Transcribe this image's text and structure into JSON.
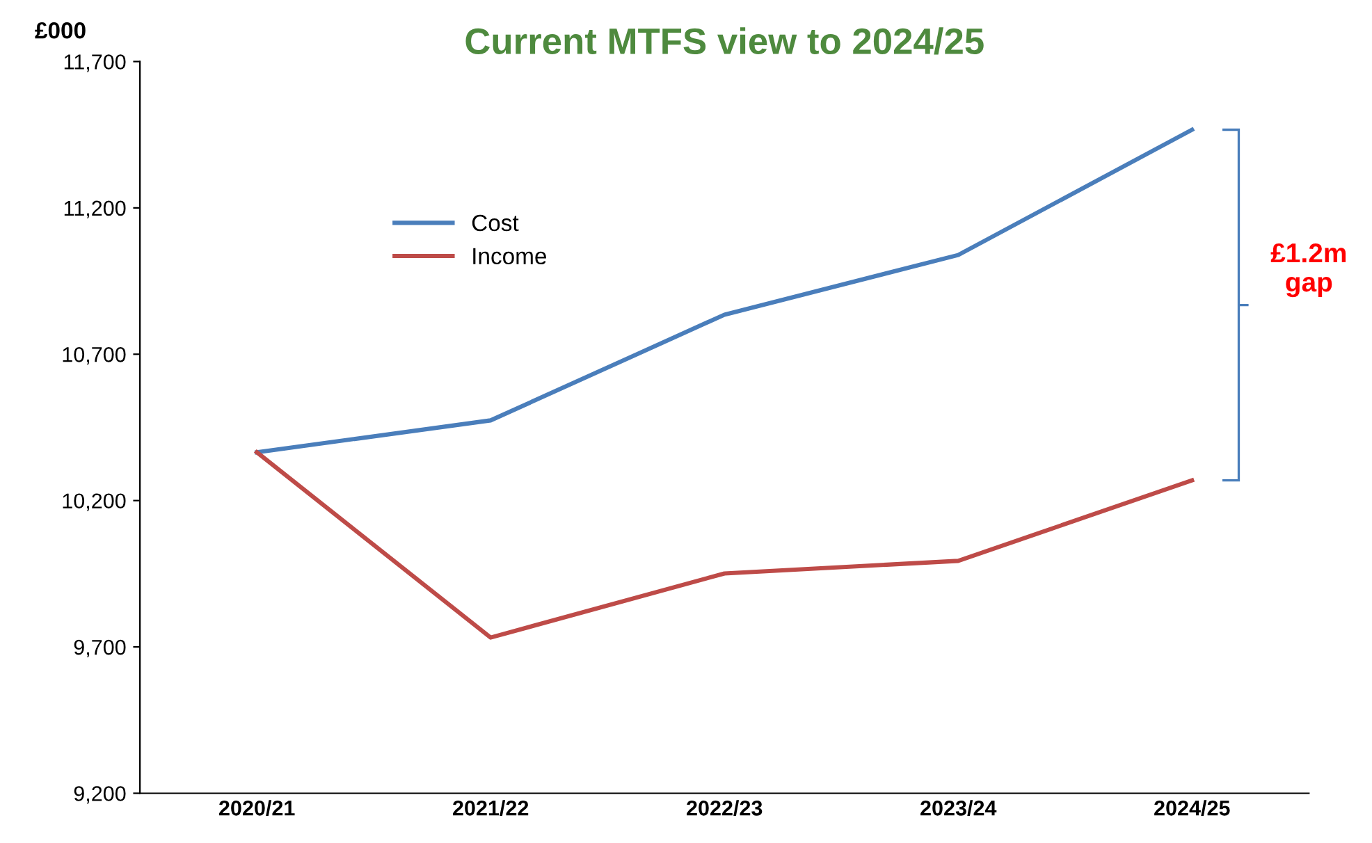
{
  "chart_data": {
    "type": "line",
    "title": "Current MTFS view to 2024/25",
    "ylabel": "£000",
    "categories": [
      "2020/21",
      "2021/22",
      "2022/23",
      "2023/24",
      "2024/25"
    ],
    "series": [
      {
        "name": "Cost",
        "color": "#4a7ebb",
        "values": [
          10365,
          10474,
          10835,
          11039,
          11467
        ]
      },
      {
        "name": "Income",
        "color": "#be4b48",
        "values": [
          10365,
          9732,
          9951,
          9994,
          10269
        ]
      }
    ],
    "ylim": [
      9200,
      11700
    ],
    "yticks": [
      {
        "value": 9200,
        "label": "9,200"
      },
      {
        "value": 9700,
        "label": "9,700"
      },
      {
        "value": 10200,
        "label": "10,200"
      },
      {
        "value": 10700,
        "label": "10,700"
      },
      {
        "value": 11200,
        "label": "11,200"
      },
      {
        "value": 11700,
        "label": "11,700"
      }
    ],
    "annotations": [
      "£1.2m\ngap"
    ],
    "legend": "top left",
    "grid": false
  }
}
